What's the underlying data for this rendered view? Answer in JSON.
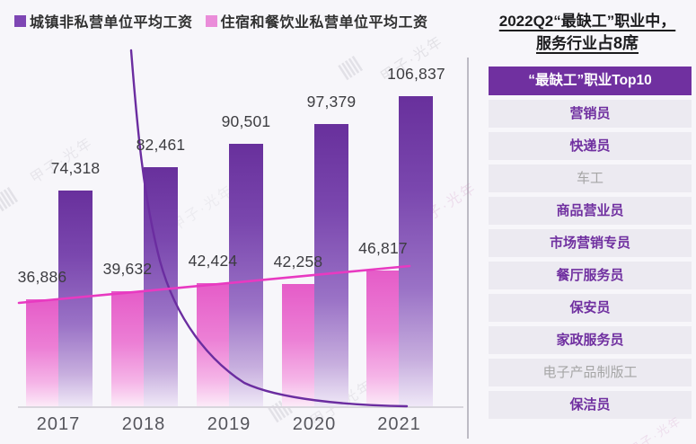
{
  "watermark": {
    "text": "甲子·光年",
    "hatch": "|||||"
  },
  "legend": {
    "items": [
      {
        "label": "城镇非私营单位平均工资",
        "color": "#7e46b4"
      },
      {
        "label": "住宿和餐饮业私营单位平均工资",
        "color": "#ea8cd9"
      }
    ]
  },
  "chart_data": {
    "type": "bar",
    "categories": [
      "2017",
      "2018",
      "2019",
      "2020",
      "2021"
    ],
    "series": [
      {
        "name": "城镇非私营单位平均工资",
        "type": "bar",
        "color": "#7030a0",
        "values": [
          74318,
          82461,
          90501,
          97379,
          106837
        ]
      },
      {
        "name": "住宿和餐饮业私营单位平均工资",
        "type": "bar",
        "color": "#e879d5",
        "values": [
          36886,
          39632,
          42424,
          42258,
          46817
        ]
      }
    ],
    "annotations": [
      {
        "name": "pink-trend-line",
        "type": "line",
        "color": "#e83ac1",
        "description": "rising linear trend across pink bars"
      },
      {
        "name": "purple-decay-curve",
        "type": "curve",
        "color": "#6b2da0",
        "description": "steep exponential decay curve flattening to baseline"
      }
    ],
    "title": "",
    "xlabel": "",
    "ylabel": "",
    "ylim": [
      0,
      140000
    ],
    "grid": false,
    "legend_position": "top-left",
    "value_label_format": "thousands-comma"
  },
  "right_panel": {
    "title_line1": "2022Q2“最缺工”职业中，",
    "title_line2_normal": "服务行业",
    "title_line2_bold": "占8席",
    "list_header": "“最缺工”职业Top10",
    "occupations": [
      {
        "label": "营销员",
        "service": true
      },
      {
        "label": "快递员",
        "service": true
      },
      {
        "label": "车工",
        "service": false
      },
      {
        "label": "商品营业员",
        "service": true
      },
      {
        "label": "市场营销专员",
        "service": true
      },
      {
        "label": "餐厅服务员",
        "service": true
      },
      {
        "label": "保安员",
        "service": true
      },
      {
        "label": "家政服务员",
        "service": true
      },
      {
        "label": "电子产品制版工",
        "service": false
      },
      {
        "label": "保洁员",
        "service": true
      }
    ]
  },
  "colors": {
    "accent_purple": "#7030a0",
    "accent_pink": "#e879d5",
    "trend_line_pink": "#e83ac1",
    "decay_curve_purple": "#6b2da0",
    "service_text": "#7030a0",
    "non_service_text": "#a6a6a6",
    "row_background": "#eceaf1",
    "page_background": "#f7f6fa"
  }
}
